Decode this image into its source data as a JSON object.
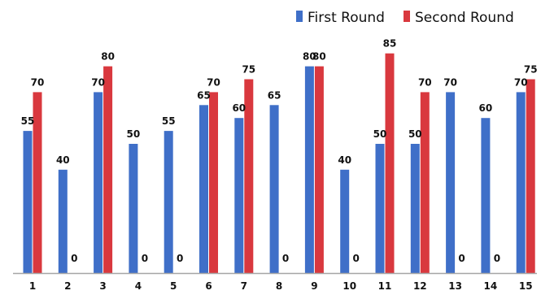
{
  "chart_data": {
    "type": "bar",
    "categories": [
      "1",
      "2",
      "3",
      "4",
      "5",
      "6",
      "7",
      "8",
      "9",
      "10",
      "11",
      "12",
      "13",
      "14",
      "15"
    ],
    "series": [
      {
        "name": "First Round",
        "values": [
          55,
          40,
          70,
          50,
          55,
          65,
          60,
          65,
          80,
          40,
          50,
          50,
          70,
          60,
          70
        ],
        "labels": [
          "55",
          "40",
          "70",
          "50",
          "55",
          "65",
          "60",
          "65",
          "80",
          "40",
          "50",
          "50",
          "70",
          "60",
          "70"
        ],
        "color": "#3f6fc8"
      },
      {
        "name": "Second Round",
        "values": [
          70,
          0,
          80,
          0,
          0,
          70,
          75,
          0,
          80,
          0,
          85,
          70,
          0,
          0,
          75
        ],
        "labels": [
          "70",
          "0",
          "80",
          "0",
          "0",
          "70",
          "75",
          "0",
          "80",
          "0",
          "85",
          "70",
          "0",
          "0",
          "75"
        ],
        "color": "#d9383e"
      }
    ],
    "title": "",
    "xlabel": "",
    "ylabel": "",
    "ylim": [
      0,
      100
    ],
    "grid": false,
    "legend_position": "top-right",
    "axis_color": "#a6a6a6"
  }
}
